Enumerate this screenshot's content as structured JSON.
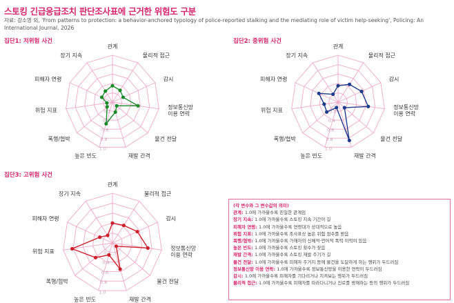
{
  "title": "스토킹 긴급응급조치 판단조사표에 근거한 위험도 구분",
  "source": "자료: 강소영 외, 'From patterns to protection: a behavior-anchored typology of police-reported stalking and the mediating role of victim help-seeking', Policing: An International Journal, 2026",
  "colors": {
    "accent": "#d6246e",
    "grid": "#f0a9c6",
    "low": "#1a8a2b",
    "mid": "#1f3c8c",
    "high": "#cc1f2c"
  },
  "chart_data": [
    {
      "type": "radar",
      "title": "집단1: 저위험 사건",
      "axes": [
        "관계",
        "물리적 접근",
        "감시",
        "정보통신망\n이용 연락",
        "물건 전달",
        "재발 간격",
        "높은 빈도",
        "폭행/협박",
        "위험 지표",
        "피해자 연령",
        "장기 지속"
      ],
      "rlim": [
        0,
        1.0
      ],
      "ticks": [
        "0.2",
        "0.4",
        "0.6",
        "0.8",
        "1.0"
      ],
      "grid": true,
      "values": [
        0.35,
        0.3,
        0.25,
        0.55,
        0.12,
        0.22,
        0.48,
        0.15,
        0.12,
        0.25,
        0.28
      ]
    },
    {
      "type": "radar",
      "title": "집단2: 중위험 사건",
      "axes": [
        "관계",
        "물리적 접근",
        "감시",
        "정보통신망\n이용 연락",
        "물건 전달",
        "재발 간격",
        "높은 빈도",
        "폭행/협박",
        "위험 지표",
        "피해자 연령",
        "장기 지속"
      ],
      "rlim": [
        0,
        1.0
      ],
      "ticks": [
        "0.2",
        "0.4",
        "0.6",
        "0.8",
        "1.0"
      ],
      "grid": true,
      "values": [
        0.35,
        0.45,
        0.55,
        0.65,
        0.18,
        0.85,
        0.12,
        0.32,
        0.3,
        0.45,
        0.2
      ]
    },
    {
      "type": "radar",
      "title": "집단3: 고위험 사건",
      "axes": [
        "관계",
        "물리적 접근",
        "감시",
        "정보통신망\n이용 연락",
        "물건 전달",
        "재발 간격",
        "높은 빈도",
        "폭행/협박",
        "위험 지표",
        "피해자 연령",
        "장기 지속"
      ],
      "rlim": [
        0,
        1.0
      ],
      "ticks": [
        "0.2",
        "0.4",
        "0.6",
        "0.8",
        "1.0"
      ],
      "grid": true,
      "values": [
        0.4,
        0.42,
        0.55,
        0.72,
        0.1,
        0.55,
        0.25,
        0.45,
        0.82,
        0.28,
        0.18
      ]
    }
  ],
  "legend_box": {
    "heading": "(각 변수와 그 변수값의 의미)",
    "items": [
      {
        "key": "관계:",
        "text": "1.0에 가까울수록 친밀한 관계임"
      },
      {
        "key": "장기 지속:",
        "text": "1.0에 가까울수록 스토킹 지속 기간이 길"
      },
      {
        "key": "피해자 연령:",
        "text": "1.0에 가까울수록 연령대가 상대적으로 높음"
      },
      {
        "key": "위험 지표:",
        "text": "1.0에 가까울수록 조사표상 높은 위험 점수를 받음"
      },
      {
        "key": "폭행/협박:",
        "text": "1.0에 가까울수록 가해자의 신체적·언어적 폭력 이력이 있음"
      },
      {
        "key": "높은 빈도:",
        "text": "1.0에 가까울수록 스토킹 횟수가 잦음"
      },
      {
        "key": "재발 간격:",
        "text": "1.0에 가까울수록 스토킹 재발 주기가 길"
      },
      {
        "key": "물건 전달:",
        "text": "1.0에 가까울수록 피해자 주거지 등에 물건을 도달하게 하는 행위가 두드러짐"
      },
      {
        "key": "정보통신망 이용 연락:",
        "text": "1.0에 가까울수록 정보통신망을 이용한 연락이 두드러짐"
      },
      {
        "key": "감시:",
        "text": "1.0에 가까울수록 피해자를 기다리거나 지켜보는 행위가 두드러짐"
      },
      {
        "key": "물리적 접근:",
        "text": "1.0에 가까울수록 피해자를 따라다니거나 진로를 방해하는 등의 행위가 두드러짐"
      }
    ]
  }
}
